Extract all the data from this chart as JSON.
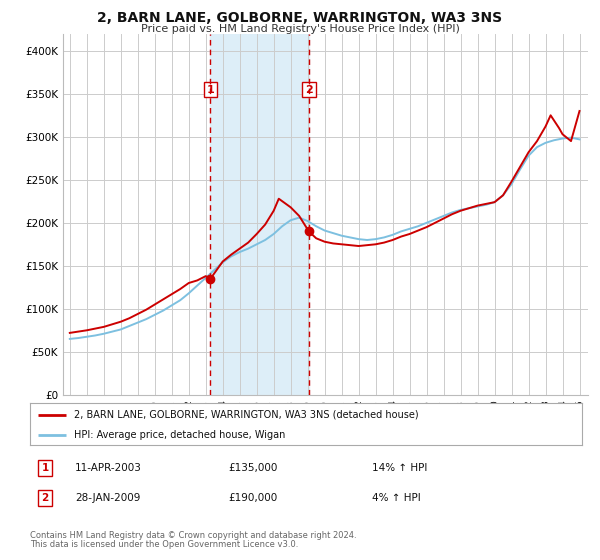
{
  "title": "2, BARN LANE, GOLBORNE, WARRINGTON, WA3 3NS",
  "subtitle": "Price paid vs. HM Land Registry's House Price Index (HPI)",
  "legend_line1": "2, BARN LANE, GOLBORNE, WARRINGTON, WA3 3NS (detached house)",
  "legend_line2": "HPI: Average price, detached house, Wigan",
  "transaction1_date": "11-APR-2003",
  "transaction1_price": "£135,000",
  "transaction1_hpi": "14% ↑ HPI",
  "transaction2_date": "28-JAN-2009",
  "transaction2_price": "£190,000",
  "transaction2_hpi": "4% ↑ HPI",
  "footnote1": "Contains HM Land Registry data © Crown copyright and database right 2024.",
  "footnote2": "This data is licensed under the Open Government Licence v3.0.",
  "hpi_color": "#7dc0e0",
  "price_color": "#cc0000",
  "marker_color": "#cc0000",
  "shading_color": "#ddeef8",
  "grid_color": "#cccccc",
  "vline_color": "#cc0000",
  "t1_year": 2003.28,
  "t2_year": 2009.07,
  "t1_price": 135000,
  "t2_price": 190000,
  "ylim": [
    0,
    420000
  ],
  "xlim_start": 1994.6,
  "xlim_end": 2025.5,
  "hpi_years": [
    1995,
    1995.5,
    1996,
    1996.5,
    1997,
    1997.5,
    1998,
    1998.5,
    1999,
    1999.5,
    2000,
    2000.5,
    2001,
    2001.5,
    2002,
    2002.5,
    2003,
    2003.5,
    2004,
    2004.5,
    2005,
    2005.5,
    2006,
    2006.5,
    2007,
    2007.5,
    2008,
    2008.5,
    2009,
    2009.5,
    2010,
    2010.5,
    2011,
    2011.5,
    2012,
    2012.5,
    2013,
    2013.5,
    2014,
    2014.5,
    2015,
    2015.5,
    2016,
    2016.5,
    2017,
    2017.5,
    2018,
    2018.5,
    2019,
    2019.5,
    2020,
    2020.5,
    2021,
    2021.5,
    2022,
    2022.5,
    2023,
    2023.5,
    2024,
    2024.5,
    2025
  ],
  "hpi_values": [
    65000,
    66000,
    67500,
    69000,
    71000,
    73500,
    76000,
    80000,
    84000,
    88000,
    93000,
    98000,
    104000,
    110000,
    118000,
    127000,
    136000,
    145000,
    154000,
    161000,
    166000,
    170000,
    175000,
    180000,
    187000,
    196000,
    203000,
    206000,
    202000,
    196000,
    191000,
    188000,
    185000,
    183000,
    181000,
    180000,
    181000,
    183000,
    186000,
    190000,
    193000,
    196000,
    200000,
    204000,
    208000,
    212000,
    215000,
    217000,
    219000,
    221000,
    224000,
    232000,
    245000,
    262000,
    278000,
    288000,
    293000,
    296000,
    298000,
    299000,
    297000
  ],
  "price_years": [
    1995,
    1995.5,
    1996,
    1996.5,
    1997,
    1997.5,
    1998,
    1998.5,
    1999,
    1999.5,
    2000,
    2000.5,
    2001,
    2001.5,
    2002,
    2002.5,
    2003,
    2003.28,
    2004,
    2004.5,
    2005,
    2005.5,
    2006,
    2006.5,
    2007,
    2007.3,
    2008,
    2008.5,
    2009.07,
    2009.5,
    2010,
    2010.5,
    2011,
    2011.5,
    2012,
    2012.5,
    2013,
    2013.5,
    2014,
    2014.5,
    2015,
    2015.5,
    2016,
    2016.5,
    2017,
    2017.5,
    2018,
    2018.5,
    2019,
    2019.5,
    2020,
    2020.5,
    2021,
    2021.5,
    2022,
    2022.5,
    2023,
    2023.3,
    2023.8,
    2024,
    2024.5,
    2025
  ],
  "price_values": [
    72000,
    73500,
    75000,
    77000,
    79000,
    82000,
    85000,
    89000,
    94000,
    99000,
    105000,
    111000,
    117000,
    123000,
    130000,
    133000,
    138000,
    135000,
    155000,
    163000,
    170000,
    177000,
    187000,
    198000,
    214000,
    228000,
    218000,
    208000,
    190000,
    182000,
    178000,
    176000,
    175000,
    174000,
    173000,
    174000,
    175000,
    177000,
    180000,
    184000,
    187000,
    191000,
    195000,
    200000,
    205000,
    210000,
    214000,
    217000,
    220000,
    222000,
    224000,
    232000,
    248000,
    265000,
    282000,
    295000,
    312000,
    325000,
    310000,
    303000,
    295000,
    330000
  ]
}
